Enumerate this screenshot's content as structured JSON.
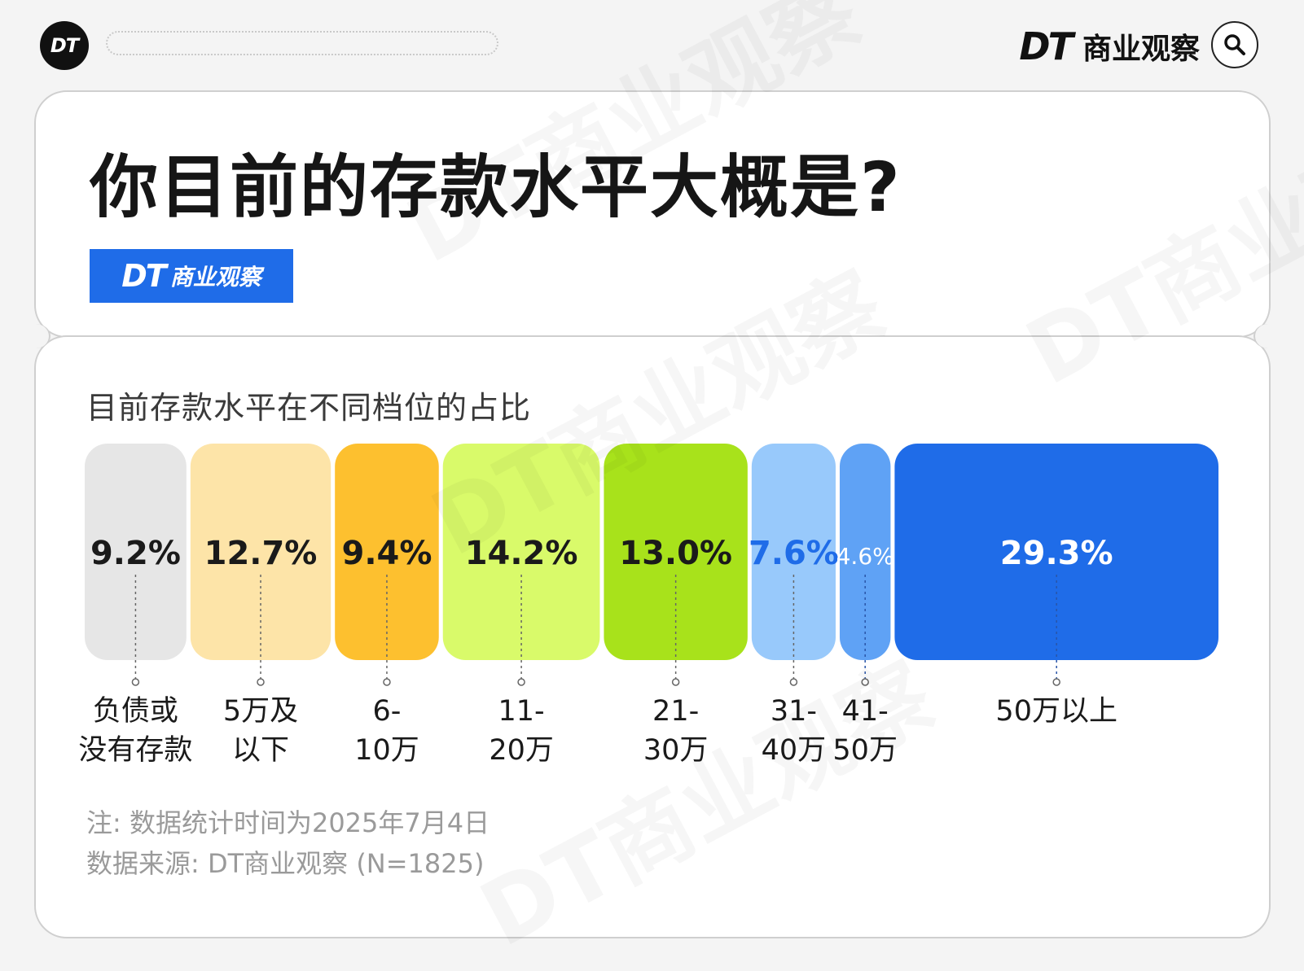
{
  "header": {
    "logo_text": "DT",
    "brand_dt": "DT",
    "brand_name": "商业观察",
    "search_icon": "search-icon"
  },
  "card": {
    "title": "你目前的存款水平大概是?",
    "badge_dt": "DT",
    "badge_name": "商业观察"
  },
  "chart_data": {
    "type": "bar",
    "title": "目前存款水平在不同档位的占比",
    "categories": [
      "负债或\n没有存款",
      "5万及\n以下",
      "6-\n10万",
      "11-\n20万",
      "21-\n30万",
      "31-\n40万",
      "41-\n50万",
      "50万以上"
    ],
    "values": [
      9.2,
      12.7,
      9.4,
      14.2,
      13.0,
      7.6,
      4.6,
      29.3
    ],
    "value_labels": [
      "9.2%",
      "12.7%",
      "9.4%",
      "14.2%",
      "13.0%",
      "7.6%",
      "4.6%",
      "29.3%"
    ],
    "unit": "%",
    "colors": [
      "#e6e6e6",
      "#fde4a8",
      "#fdc02f",
      "#d9fa6a",
      "#a8e21b",
      "#98c9fb",
      "#5fa2f5",
      "#1f6ce8"
    ],
    "label_colors": [
      "#1a1a1a",
      "#1a1a1a",
      "#1a1a1a",
      "#1a1a1a",
      "#1a1a1a",
      "#1f6ce8",
      "#ffffff",
      "#ffffff"
    ],
    "grid": false,
    "legend": "none"
  },
  "footnotes": {
    "note": "注: 数据统计时间为2025年7月4日",
    "source": "数据来源: DT商业观察 (N=1825)"
  },
  "watermark_text": "DT商业观察"
}
